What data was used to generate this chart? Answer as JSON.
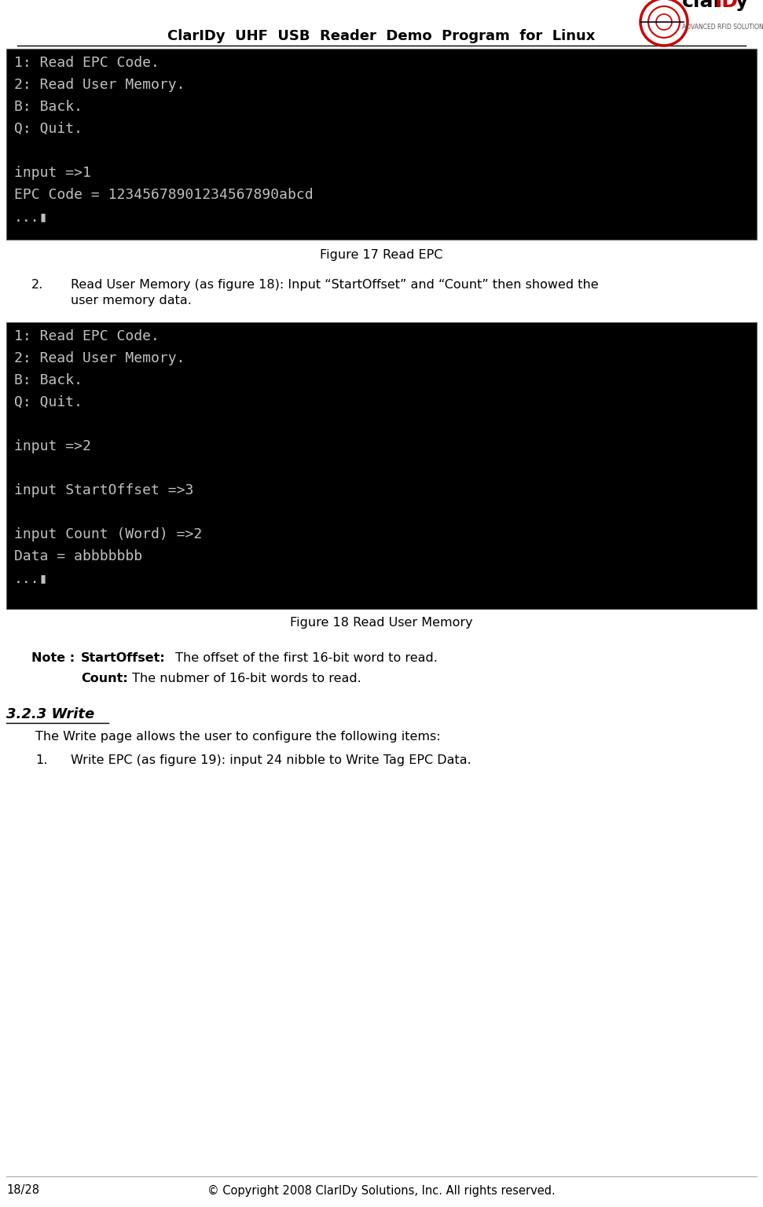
{
  "page_title": "ClarIDy  UHF  USB  Reader  Demo  Program  for  Linux",
  "terminal1_lines": [
    "1: Read EPC Code.",
    "2: Read User Memory.",
    "B: Back.",
    "Q: Quit.",
    "",
    "input =>1",
    "EPC Code = 12345678901234567890abcd",
    "...▮"
  ],
  "terminal2_lines": [
    "1: Read EPC Code.",
    "2: Read User Memory.",
    "B: Back.",
    "Q: Quit.",
    "",
    "input =>2",
    "",
    "input StartOffset =>3",
    "",
    "input Count (Word) =>2",
    "Data = abbbbbbb",
    "...▮"
  ],
  "fig17_caption": "Figure 17 Read EPC",
  "fig18_caption": "Figure 18 Read User Memory",
  "note_bold_label": "Note : ",
  "note_bold1": "StartOffset:",
  "note_text1": " The offset of the first 16-bit word to read.",
  "note_bold2": "Count:",
  "note_text2": " The nubmer of 16-bit words to read.",
  "section_title": "3.2.3 Write",
  "section_body": "The Write page allows the user to configure the following items:",
  "item1_text": "Write EPC (as figure 19): input 24 nibble to Write Tag EPC Data.",
  "body_text2_line1": "Read User Memory (as figure 18): Input “StartOffset” and “Count” then showed the",
  "body_text2_line2": "user memory data.",
  "footer_left": "18/28",
  "footer_right": "© Copyright 2008 ClarIDy Solutions, Inc. All rights reserved.",
  "bg_color": "#000000",
  "terminal_text_color": "#c0c0c0",
  "page_bg": "#ffffff",
  "title_color": "#000000"
}
